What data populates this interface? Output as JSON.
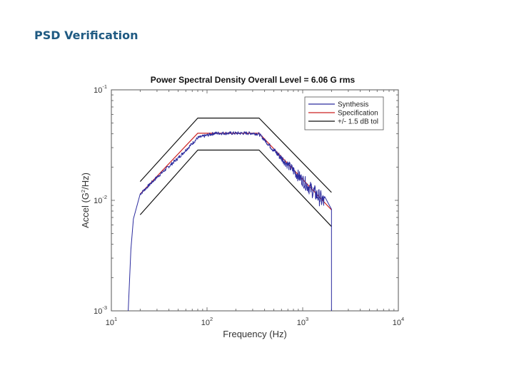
{
  "slide": {
    "title": "PSD Verification"
  },
  "chart_data": {
    "type": "line",
    "title": "Power Spectral Density  Overall Level =   6.06 G rms",
    "xlabel": "Frequency (Hz)",
    "ylabel_base": "Accel (G",
    "ylabel_exp": "2",
    "ylabel_tail": "/Hz)",
    "x_scale": "log",
    "y_scale": "log",
    "xlim": [
      10,
      10000
    ],
    "ylim": [
      0.001,
      0.1
    ],
    "x_ticks": [
      {
        "value": 10,
        "base": "10",
        "exp": "1"
      },
      {
        "value": 100,
        "base": "10",
        "exp": "2"
      },
      {
        "value": 1000,
        "base": "10",
        "exp": "3"
      },
      {
        "value": 10000,
        "base": "10",
        "exp": "4"
      }
    ],
    "y_ticks": [
      {
        "value": 0.001,
        "base": "10",
        "exp": "-3"
      },
      {
        "value": 0.01,
        "base": "10",
        "exp": "-2"
      },
      {
        "value": 0.1,
        "base": "10",
        "exp": "-1"
      }
    ],
    "grid": false,
    "legend_position": "top-right",
    "series": [
      {
        "name": "Synthesis",
        "color": "#2b2b9e",
        "noisy": true,
        "x": [
          15,
          16,
          17,
          20,
          30,
          50,
          80,
          120,
          200,
          300,
          350,
          500,
          800,
          1200,
          1700,
          2000,
          2000.5
        ],
        "y": [
          0.001,
          0.0036,
          0.0068,
          0.0114,
          0.0162,
          0.0242,
          0.0368,
          0.0405,
          0.0405,
          0.0405,
          0.0398,
          0.0284,
          0.0186,
          0.0128,
          0.0095,
          0.0083,
          0.001
        ]
      },
      {
        "name": "Specification",
        "color": "#cc2222",
        "noisy": false,
        "x": [
          20,
          80,
          350,
          2000
        ],
        "y": [
          0.0114,
          0.0405,
          0.0405,
          0.0082
        ]
      },
      {
        "name": "+/- 1.5 dB tol",
        "color": "#111111",
        "noisy": false,
        "x": [
          20,
          80,
          350,
          2000
        ],
        "y": [
          0.0148,
          0.0555,
          0.0555,
          0.0118
        ]
      },
      {
        "name": "",
        "color": "#111111",
        "noisy": false,
        "x": [
          20,
          80,
          350,
          2000
        ],
        "y": [
          0.0074,
          0.0285,
          0.0285,
          0.0058
        ]
      }
    ]
  }
}
